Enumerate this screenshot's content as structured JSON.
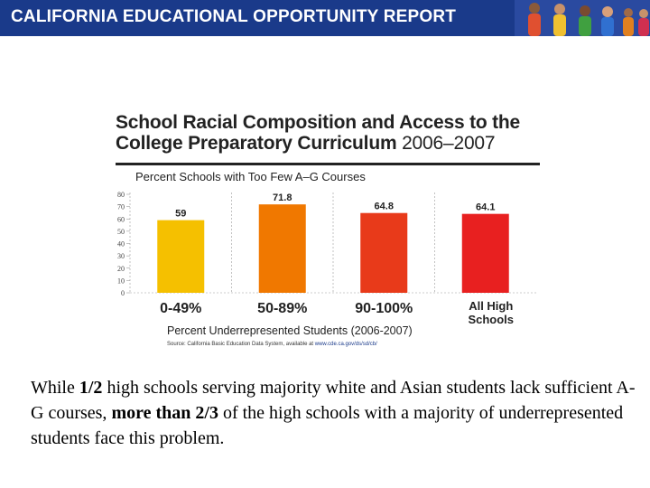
{
  "banner": {
    "title": "CALIFORNIA EDUCATIONAL OPPORTUNITY REPORT"
  },
  "chart_data": {
    "type": "bar",
    "title_line1": "School Racial Composition and Access to the",
    "title_line2": "College Preparatory Curriculum",
    "title_year": "2006–2007",
    "subtitle": "Percent Schools with Too Few A–G Courses",
    "categories": [
      "0-49%",
      "50-89%",
      "90-100%",
      "All High Schools"
    ],
    "values": [
      59,
      71.8,
      64.8,
      64.1
    ],
    "value_labels": [
      "59",
      "71.8",
      "64.8",
      "64.1"
    ],
    "colors": [
      "#f5c000",
      "#f07800",
      "#e83a1a",
      "#e82020"
    ],
    "yticks": [
      "0",
      "10",
      "20",
      "30",
      "40",
      "50",
      "60",
      "70",
      "80"
    ],
    "ylim": [
      0,
      80
    ],
    "xlabel": "Percent Underrepresented Students (2006-2007)",
    "source_prefix": "Source: California Basic Education Data System, available at",
    "source_link": "www.cde.ca.gov/ds/sd/cb/"
  },
  "caption": {
    "p1": "While",
    "b1": "1/2",
    "p2": " high schools serving majority white and Asian students lack sufficient A-G courses,",
    "b2": "more than 2/3",
    "p3": " of the high schools with a majority of underrepresented students face this problem."
  }
}
